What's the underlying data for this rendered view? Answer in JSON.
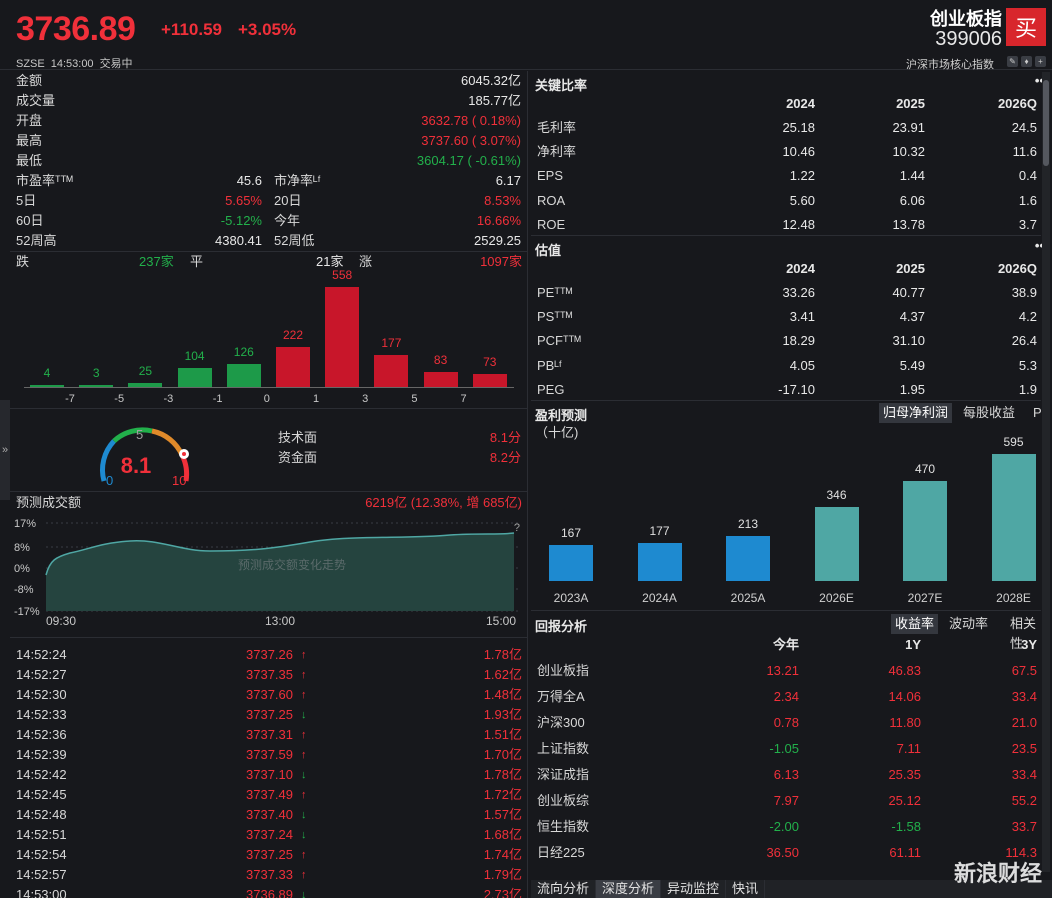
{
  "header": {
    "price": "3736.89",
    "change": "+110.59",
    "change_pct": "+3.05%",
    "exchange": "SZSE",
    "time": "14:53:00",
    "status": "交易中",
    "name": "创业板指",
    "code": "399006",
    "buy_label": "买",
    "core_label": "沪深市场核心指数"
  },
  "stats": [
    {
      "label": "金额",
      "value": "6045.32亿",
      "color": "white"
    },
    {
      "label": "成交量",
      "value": "185.77亿",
      "color": "white"
    },
    {
      "label": "开盘",
      "value": "3632.78 ( 0.18%)",
      "color": "red"
    },
    {
      "label": "最高",
      "value": "3737.60 ( 3.07%)",
      "color": "red"
    },
    {
      "label": "最低",
      "value": "3604.17 ( -0.61%)",
      "color": "green"
    }
  ],
  "stats2": [
    {
      "l1": "市盈率ᵀᵀᴹ",
      "v1": "45.6",
      "c1": "white",
      "l2": "市净率ᴸᶠ",
      "v2": "6.17",
      "c2": "white"
    },
    {
      "l1": "5日",
      "v1": "5.65%",
      "c1": "red",
      "l2": "20日",
      "v2": "8.53%",
      "c2": "red"
    },
    {
      "l1": "60日",
      "v1": "-5.12%",
      "c1": "green",
      "l2": "今年",
      "v2": "16.66%",
      "c2": "red"
    },
    {
      "l1": "52周高",
      "v1": "4380.41",
      "c1": "white",
      "l2": "52周低",
      "v2": "2529.25",
      "c2": "white"
    }
  ],
  "breadth": {
    "down_label": "跌",
    "down": "237家",
    "flat_label": "平",
    "flat": "21家",
    "up_label": "涨",
    "up": "1097家"
  },
  "dist": {
    "values": [
      4,
      3,
      25,
      104,
      126,
      222,
      558,
      177,
      83,
      73
    ],
    "ticks": [
      "-7",
      "-5",
      "-3",
      "-1",
      "0",
      "1",
      "3",
      "5",
      "7"
    ]
  },
  "gauge": {
    "value": "8.1",
    "min": "0",
    "mid": "5",
    "max": "10"
  },
  "scores": [
    {
      "label": "技术面",
      "value": "8.1分"
    },
    {
      "label": "资金面",
      "value": "8.2分"
    }
  ],
  "forecast": {
    "title": "预测成交额",
    "value": "6219亿 (12.38%, 增 685亿)",
    "yticks": [
      "17%",
      "8%",
      "0%",
      "-8%",
      "-17%"
    ],
    "xticks": [
      "09:30",
      "13:00",
      "15:00"
    ],
    "center": "预测成交额变化走势",
    "q": "?"
  },
  "ticks": [
    {
      "t": "14:52:24",
      "p": "3737.26",
      "d": "up",
      "v": "1.78亿"
    },
    {
      "t": "14:52:27",
      "p": "3737.35",
      "d": "up",
      "v": "1.62亿"
    },
    {
      "t": "14:52:30",
      "p": "3737.60",
      "d": "up",
      "v": "1.48亿"
    },
    {
      "t": "14:52:33",
      "p": "3737.25",
      "d": "down",
      "v": "1.93亿"
    },
    {
      "t": "14:52:36",
      "p": "3737.31",
      "d": "up",
      "v": "1.51亿"
    },
    {
      "t": "14:52:39",
      "p": "3737.59",
      "d": "up",
      "v": "1.70亿"
    },
    {
      "t": "14:52:42",
      "p": "3737.10",
      "d": "down",
      "v": "1.78亿"
    },
    {
      "t": "14:52:45",
      "p": "3737.49",
      "d": "up",
      "v": "1.72亿"
    },
    {
      "t": "14:52:48",
      "p": "3737.40",
      "d": "down",
      "v": "1.57亿"
    },
    {
      "t": "14:52:51",
      "p": "3737.24",
      "d": "down",
      "v": "1.68亿"
    },
    {
      "t": "14:52:54",
      "p": "3737.25",
      "d": "up",
      "v": "1.74亿"
    },
    {
      "t": "14:52:57",
      "p": "3737.33",
      "d": "up",
      "v": "1.79亿"
    },
    {
      "t": "14:53:00",
      "p": "3736.89",
      "d": "down",
      "v": "2.73亿"
    }
  ],
  "ratios": {
    "title": "关键比率",
    "cols": [
      "2024",
      "2025",
      "2026Q"
    ],
    "rows": [
      {
        "l": "毛利率",
        "v": [
          "25.18",
          "23.91",
          "24.5"
        ]
      },
      {
        "l": "净利率",
        "v": [
          "10.46",
          "10.32",
          "11.6"
        ]
      },
      {
        "l": "EPS",
        "v": [
          "1.22",
          "1.44",
          "0.4"
        ]
      },
      {
        "l": "ROA",
        "v": [
          "5.60",
          "6.06",
          "1.6"
        ]
      },
      {
        "l": "ROE",
        "v": [
          "12.48",
          "13.78",
          "3.7"
        ]
      }
    ]
  },
  "valuation": {
    "title": "估值",
    "cols": [
      "2024",
      "2025",
      "2026Q"
    ],
    "rows": [
      {
        "l": "PEᵀᵀᴹ",
        "v": [
          "33.26",
          "40.77",
          "38.9"
        ]
      },
      {
        "l": "PSᵀᵀᴹ",
        "v": [
          "3.41",
          "4.37",
          "4.2"
        ]
      },
      {
        "l": "PCFᵀᵀᴹ",
        "v": [
          "18.29",
          "31.10",
          "26.4"
        ]
      },
      {
        "l": "PBᴸᶠ",
        "v": [
          "4.05",
          "5.49",
          "5.3"
        ]
      },
      {
        "l": "PEG",
        "v": [
          "-17.10",
          "1.95",
          "1.9"
        ]
      }
    ]
  },
  "profit": {
    "title": "盈利预测",
    "tabs": [
      "归母净利润",
      "每股收益",
      "P"
    ],
    "unit": "（十亿)"
  },
  "chart_data": {
    "type": "bar",
    "categories": [
      "2023A",
      "2024A",
      "2025A",
      "2026E",
      "2027E",
      "2028E"
    ],
    "values": [
      167,
      177,
      213,
      346,
      470,
      595
    ],
    "colors": [
      "#1e8ad0",
      "#1e8ad0",
      "#1e8ad0",
      "#4fa7a4",
      "#4fa7a4",
      "#4fa7a4"
    ]
  },
  "returns": {
    "title": "回报分析",
    "tabs": [
      "收益率",
      "波动率",
      "相关性"
    ],
    "cols": [
      "今年",
      "1Y",
      "3Y"
    ],
    "rows": [
      {
        "l": "创业板指",
        "v": [
          "13.21",
          "46.83",
          "67.5"
        ],
        "c": [
          "red",
          "red",
          "red"
        ]
      },
      {
        "l": "万得全A",
        "v": [
          "2.34",
          "14.06",
          "33.4"
        ],
        "c": [
          "red",
          "red",
          "red"
        ]
      },
      {
        "l": "沪深300",
        "v": [
          "0.78",
          "11.80",
          "21.0"
        ],
        "c": [
          "red",
          "red",
          "red"
        ]
      },
      {
        "l": "上证指数",
        "v": [
          "-1.05",
          "7.11",
          "23.5"
        ],
        "c": [
          "green",
          "red",
          "red"
        ]
      },
      {
        "l": "深证成指",
        "v": [
          "6.13",
          "25.35",
          "33.4"
        ],
        "c": [
          "red",
          "red",
          "red"
        ]
      },
      {
        "l": "创业板综",
        "v": [
          "7.97",
          "25.12",
          "55.2"
        ],
        "c": [
          "red",
          "red",
          "red"
        ]
      },
      {
        "l": "恒生指数",
        "v": [
          "-2.00",
          "-1.58",
          "33.7"
        ],
        "c": [
          "green",
          "green",
          "red"
        ]
      },
      {
        "l": "日经225",
        "v": [
          "36.50",
          "61.11",
          "114.3"
        ],
        "c": [
          "red",
          "red",
          "red"
        ]
      }
    ]
  },
  "bottom_tabs": [
    "流向分析",
    "深度分析",
    "异动监控",
    "快讯"
  ],
  "watermark": "新浪财经"
}
